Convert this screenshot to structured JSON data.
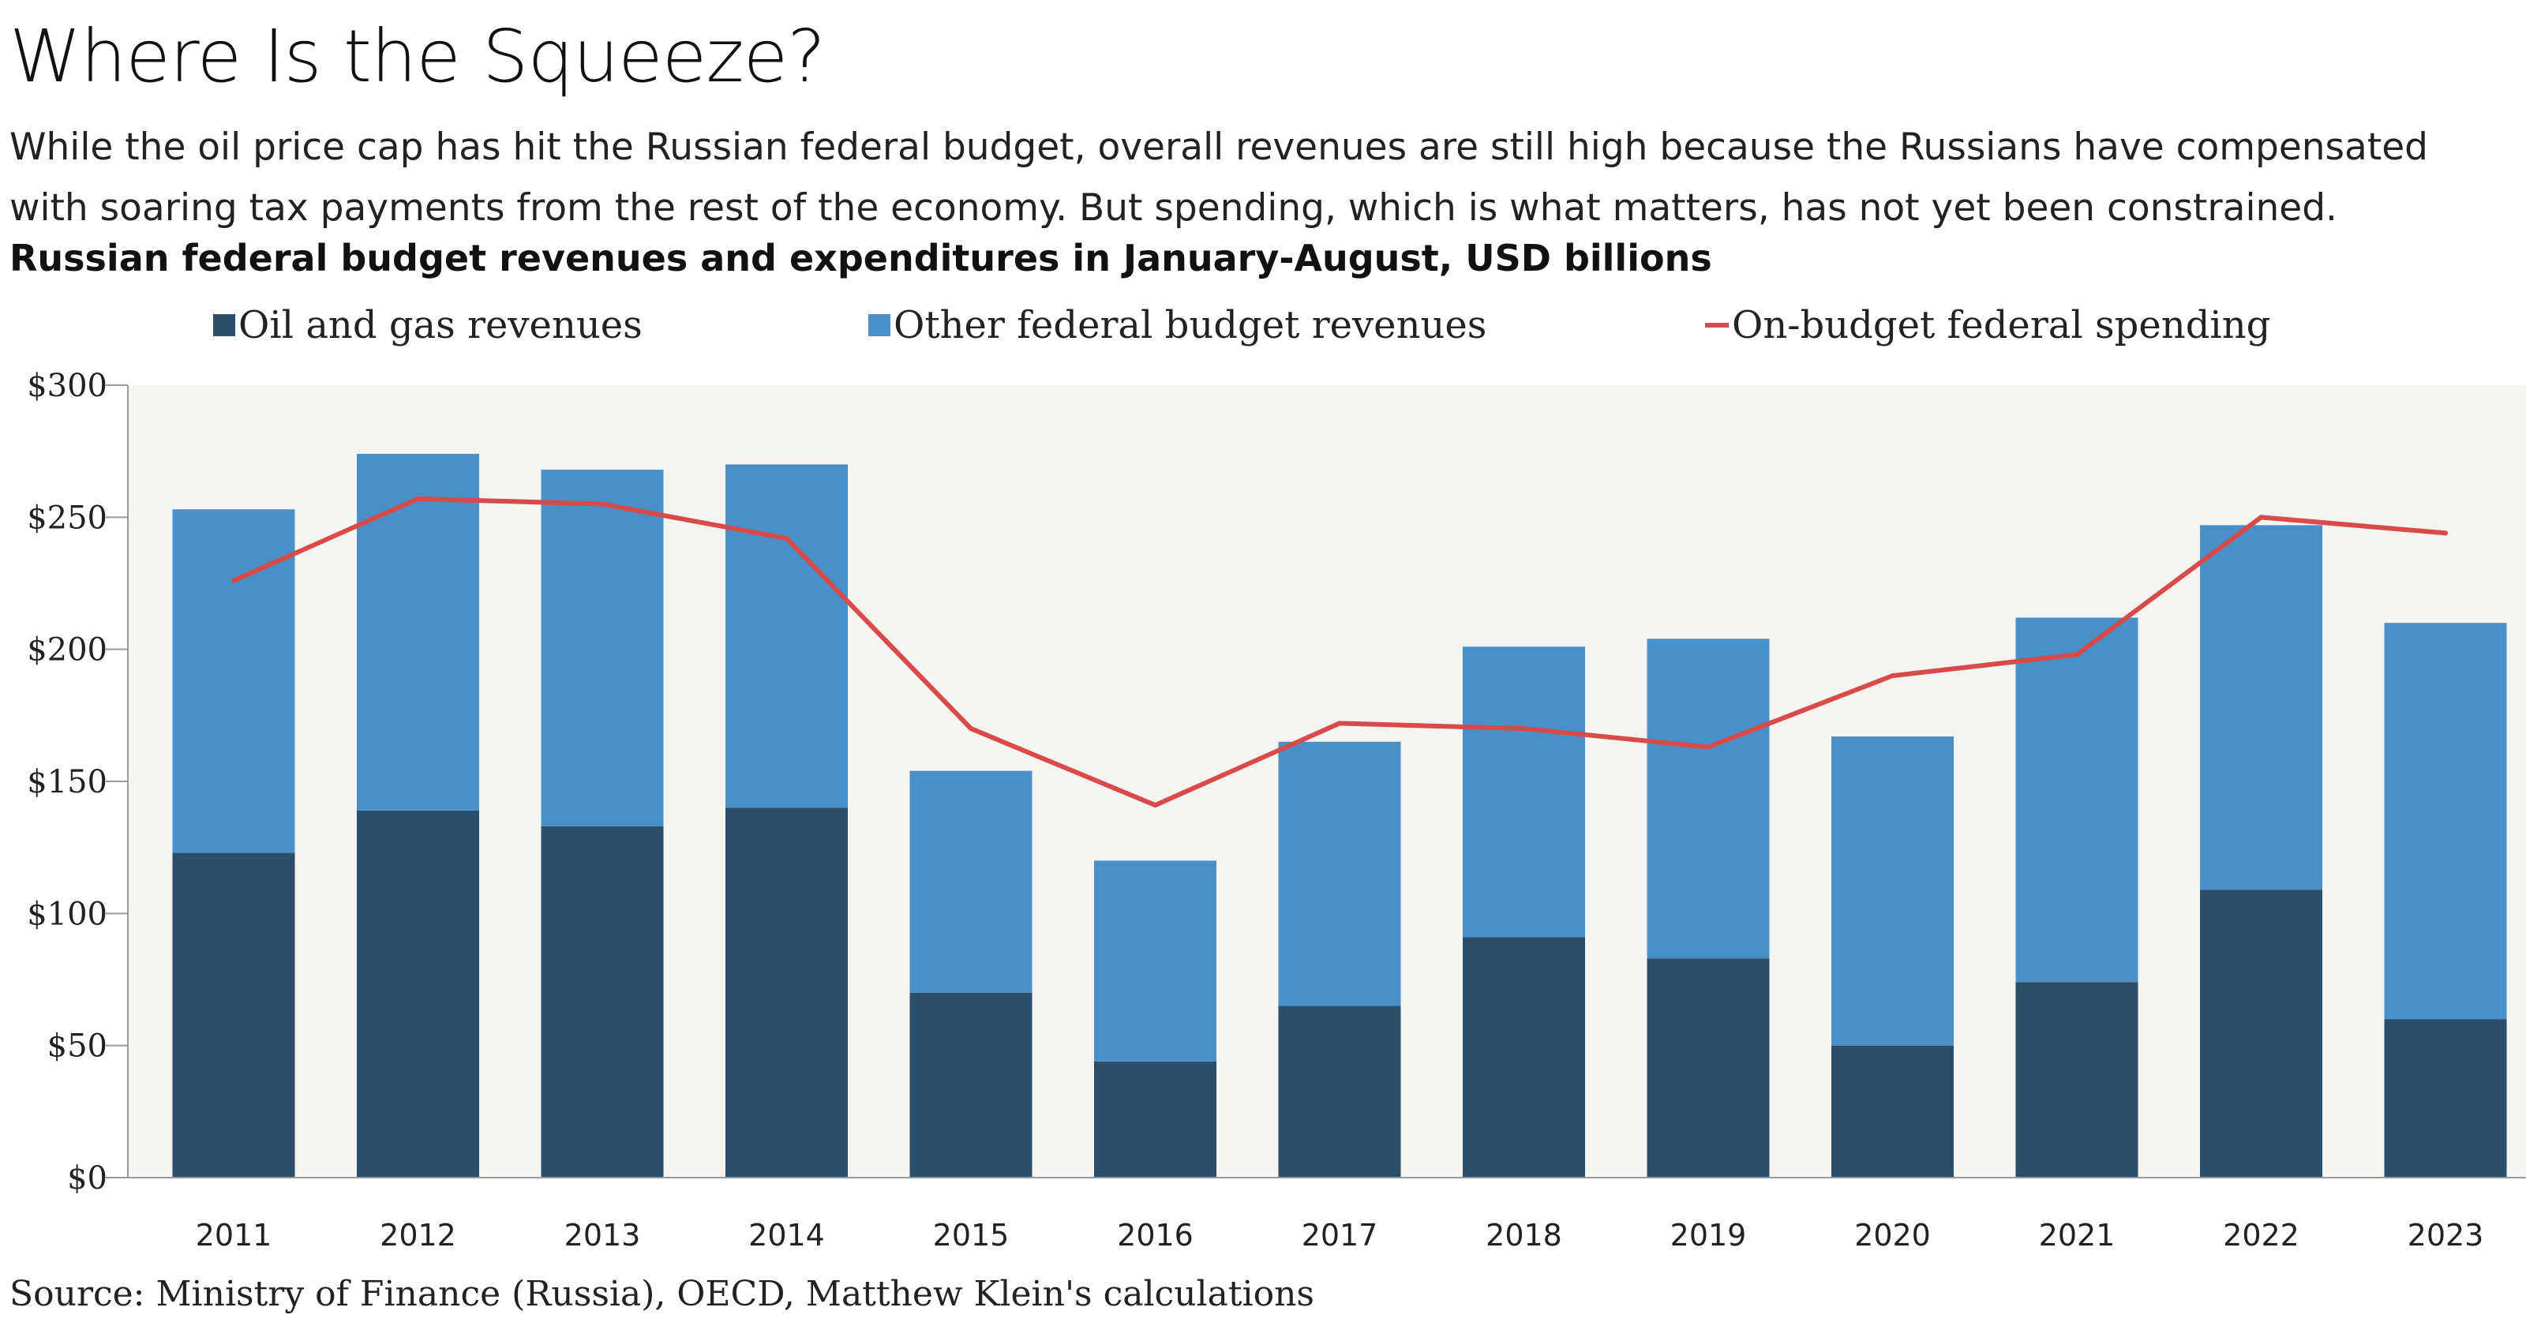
{
  "title": "Where Is the Squeeze?",
  "subtitle": "While the oil price cap has hit the Russian federal budget, overall revenues are still high because the Russians have compensated with soaring tax payments from the rest of the economy. But spending, which is what matters, has not yet been constrained.",
  "chart_heading": "Russian federal budget revenues and expenditures in January-August, USD billions",
  "source": "Source: Ministry of Finance (Russia), OECD, Matthew Klein's calculations",
  "chart_data": {
    "type": "bar",
    "stacked": true,
    "categories": [
      "2011",
      "2012",
      "2013",
      "2014",
      "2015",
      "2016",
      "2017",
      "2018",
      "2019",
      "2020",
      "2021",
      "2022",
      "2023"
    ],
    "series": [
      {
        "name": "Oil and gas revenues",
        "kind": "bar",
        "color": "#2b4e6a",
        "values": [
          123,
          139,
          133,
          140,
          70,
          44,
          65,
          91,
          83,
          50,
          74,
          109,
          60
        ]
      },
      {
        "name": "Other federal budget revenues",
        "kind": "bar",
        "color": "#4a90c8",
        "values": [
          130,
          135,
          135,
          130,
          84,
          76,
          100,
          110,
          121,
          117,
          138,
          138,
          150
        ]
      },
      {
        "name": "On-budget federal spending",
        "kind": "line",
        "color": "#d94a4a",
        "values": [
          226,
          257,
          255,
          242,
          170,
          141,
          172,
          170,
          163,
          190,
          198,
          250,
          244
        ]
      }
    ],
    "ylim": [
      0,
      300
    ],
    "yticks": [
      0,
      50,
      100,
      150,
      200,
      250,
      300
    ],
    "ytick_labels": [
      "$0",
      "$50",
      "$100",
      "$150",
      "$200",
      "$250",
      "$300"
    ],
    "legend_position": "top",
    "grid": false,
    "plot_background": "#f6f4f0"
  }
}
